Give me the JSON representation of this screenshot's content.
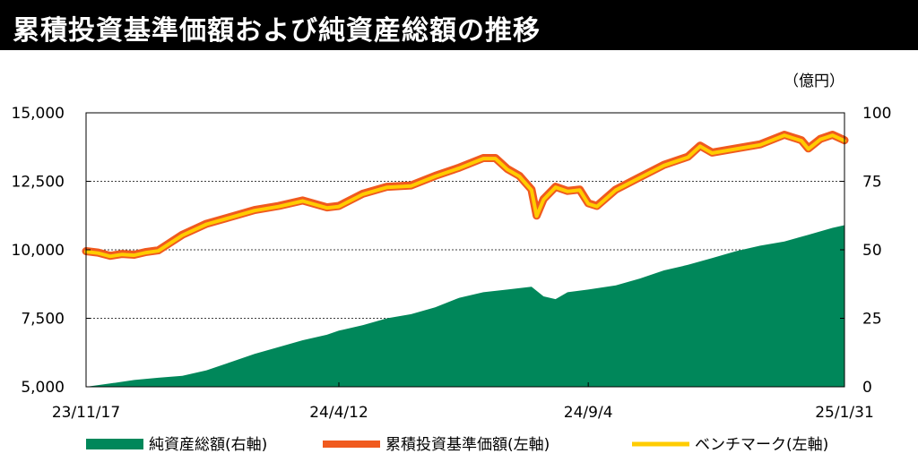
{
  "chart_data": {
    "type": "line",
    "title": "累積投資基準価額および純資産総額の推移",
    "unit_right": "（億円）",
    "x_ticks": [
      "23/11/17",
      "24/4/12",
      "24/9/4",
      "25/1/31"
    ],
    "y_left": {
      "ticks": [
        "5,000",
        "7,500",
        "10,000",
        "12,500",
        "15,000"
      ],
      "min": 5000,
      "max": 15000
    },
    "y_right": {
      "ticks": [
        "0",
        "25",
        "50",
        "75",
        "100"
      ],
      "min": 0,
      "max": 100
    },
    "grid": "horizontal-dashed",
    "legend_position": "bottom",
    "colors": {
      "nav": "#f05a1e",
      "benchmark": "#ffcc00",
      "assets": "#00875a"
    },
    "series": [
      {
        "name": "純資産総額(右軸)",
        "type": "area",
        "axis": "right",
        "x": [
          "23/11/17",
          "23/12/1",
          "23/12/15",
          "23/12/29",
          "24/1/12",
          "24/1/26",
          "24/2/9",
          "24/2/23",
          "24/3/8",
          "24/3/22",
          "24/4/5",
          "24/4/12",
          "24/4/26",
          "24/5/10",
          "24/5/24",
          "24/6/7",
          "24/6/21",
          "24/7/5",
          "24/7/19",
          "24/8/2",
          "24/8/9",
          "24/8/16",
          "24/8/23",
          "24/9/4",
          "24/9/20",
          "24/10/4",
          "24/10/18",
          "24/11/1",
          "24/11/15",
          "24/11/29",
          "24/12/13",
          "24/12/27",
          "25/1/10",
          "25/1/24",
          "25/1/31"
        ],
        "values": [
          0,
          1.2,
          2.5,
          3.3,
          4.0,
          6.0,
          9.0,
          12.0,
          14.5,
          17.0,
          19.0,
          20.5,
          22.5,
          25.0,
          26.5,
          29.0,
          32.5,
          34.5,
          35.5,
          36.5,
          33.0,
          32.0,
          34.5,
          35.5,
          37.0,
          39.5,
          42.5,
          44.5,
          47.0,
          49.5,
          51.5,
          53.0,
          55.5,
          58.0,
          59.0
        ]
      },
      {
        "name": "累積投資基準価額(左軸)",
        "type": "line",
        "axis": "left",
        "x": [
          "23/11/17",
          "23/11/24",
          "23/12/1",
          "23/12/8",
          "23/12/15",
          "23/12/22",
          "23/12/29",
          "24/1/12",
          "24/1/26",
          "24/2/9",
          "24/2/23",
          "24/3/8",
          "24/3/22",
          "24/4/5",
          "24/4/12",
          "24/4/26",
          "24/5/10",
          "24/5/24",
          "24/6/7",
          "24/6/21",
          "24/7/5",
          "24/7/12",
          "24/7/19",
          "24/7/26",
          "24/8/2",
          "24/8/5",
          "24/8/9",
          "24/8/16",
          "24/8/23",
          "24/8/30",
          "24/9/4",
          "24/9/9",
          "24/9/20",
          "24/10/4",
          "24/10/18",
          "24/11/1",
          "24/11/8",
          "24/11/15",
          "24/11/29",
          "24/12/13",
          "24/12/27",
          "25/1/6",
          "25/1/10",
          "25/1/17",
          "25/1/24",
          "25/1/31"
        ],
        "values": [
          9950,
          9900,
          9780,
          9850,
          9820,
          9920,
          9980,
          10550,
          10950,
          11200,
          11450,
          11600,
          11800,
          11550,
          11600,
          12050,
          12300,
          12350,
          12700,
          13000,
          13350,
          13350,
          12950,
          12700,
          12200,
          11250,
          11850,
          12300,
          12150,
          12200,
          11700,
          11600,
          12200,
          12650,
          13100,
          13400,
          13800,
          13550,
          13700,
          13850,
          14200,
          14000,
          13700,
          14050,
          14200,
          14000
        ]
      },
      {
        "name": "ベンチマーク(左軸)",
        "type": "line",
        "axis": "left",
        "x": [
          "23/11/17",
          "23/11/24",
          "23/12/1",
          "23/12/8",
          "23/12/15",
          "23/12/22",
          "23/12/29",
          "24/1/12",
          "24/1/26",
          "24/2/9",
          "24/2/23",
          "24/3/8",
          "24/3/22",
          "24/4/5",
          "24/4/12",
          "24/4/26",
          "24/5/10",
          "24/5/24",
          "24/6/7",
          "24/6/21",
          "24/7/5",
          "24/7/12",
          "24/7/19",
          "24/7/26",
          "24/8/2",
          "24/8/5",
          "24/8/9",
          "24/8/16",
          "24/8/23",
          "24/8/30",
          "24/9/4",
          "24/9/9",
          "24/9/20",
          "24/10/4",
          "24/10/18",
          "24/11/1",
          "24/11/8",
          "24/11/15",
          "24/11/29",
          "24/12/13",
          "24/12/27",
          "25/1/6",
          "25/1/10",
          "25/1/17",
          "25/1/24",
          "25/1/31"
        ],
        "values": [
          9930,
          9880,
          9760,
          9830,
          9800,
          9900,
          9960,
          10530,
          10930,
          11180,
          11430,
          11580,
          11780,
          11530,
          11580,
          12030,
          12280,
          12330,
          12680,
          12980,
          13330,
          13330,
          12930,
          12680,
          12180,
          11230,
          11830,
          12280,
          12130,
          12180,
          11680,
          11580,
          12180,
          12630,
          13080,
          13380,
          13780,
          13530,
          13680,
          13830,
          14180,
          13980,
          13680,
          14030,
          14180,
          13980
        ]
      }
    ]
  }
}
